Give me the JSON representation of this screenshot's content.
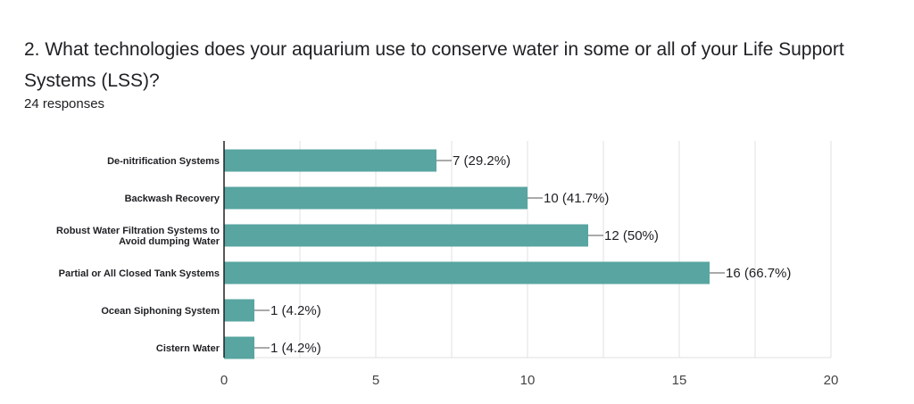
{
  "question": {
    "title": "2. What technologies does your aquarium use to conserve water in some or all of your Life Support Systems (LSS)?",
    "responses": "24 responses"
  },
  "colors": {
    "bar": "#58a5a1",
    "grid": "#e0e0e0",
    "axis": "#202124",
    "leader": "#555555"
  },
  "chart_data": {
    "type": "bar",
    "orientation": "horizontal",
    "categories": [
      [
        "De-nitrification Systems"
      ],
      [
        "Backwash Recovery"
      ],
      [
        "Robust Water Filtration Systems to",
        "Avoid dumping Water"
      ],
      [
        "Partial or All Closed Tank Systems"
      ],
      [
        "Ocean  Siphoning System"
      ],
      [
        "Cistern Water"
      ]
    ],
    "values": [
      7,
      10,
      12,
      16,
      1,
      1
    ],
    "data_labels": [
      "7 (29.2%)",
      "10 (41.7%)",
      "12 (50%)",
      "16 (66.7%)",
      "1 (4.2%)",
      "1 (4.2%)"
    ],
    "xlim": [
      0,
      20
    ],
    "xticks": [
      0,
      5,
      10,
      15,
      20
    ],
    "grid": true,
    "legend": "none"
  }
}
